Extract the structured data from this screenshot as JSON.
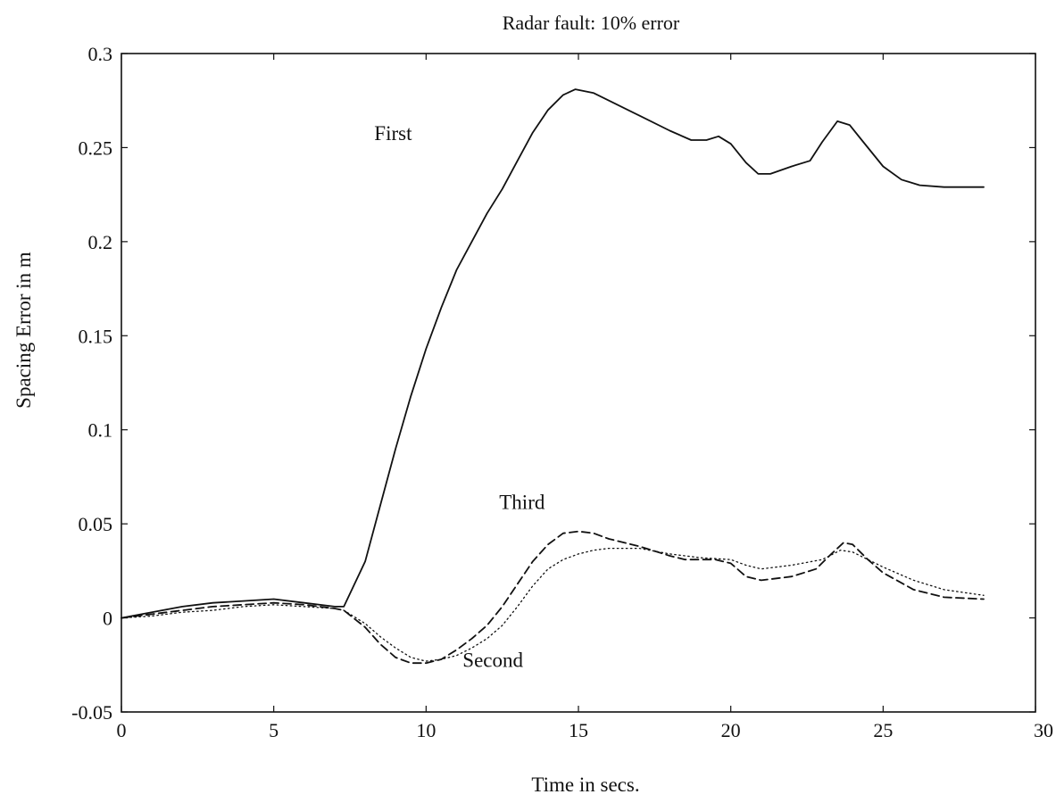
{
  "chart_data": {
    "type": "line",
    "title": "Radar fault: 10% error",
    "xlabel": "Time in secs.",
    "ylabel": "Spacing Error in m",
    "xlim": [
      0,
      30
    ],
    "ylim": [
      -0.05,
      0.3
    ],
    "grid": false,
    "x_ticks": [
      0,
      5,
      10,
      15,
      20,
      25,
      30
    ],
    "x_tick_labels": [
      "0",
      "5",
      "10",
      "15",
      "20",
      "25",
      "30"
    ],
    "y_ticks": [
      -0.05,
      0,
      0.05,
      0.1,
      0.15,
      0.2,
      0.25,
      0.3
    ],
    "y_tick_labels": [
      "-0.05",
      "0",
      "0.05",
      "0.1",
      "0.15",
      "0.2",
      "0.25",
      "0.3"
    ],
    "series": [
      {
        "name": "First",
        "style": "solid",
        "color": "#111111",
        "points": [
          [
            0,
            0
          ],
          [
            1,
            0.003
          ],
          [
            2,
            0.006
          ],
          [
            3,
            0.008
          ],
          [
            4,
            0.009
          ],
          [
            5,
            0.01
          ],
          [
            6,
            0.008
          ],
          [
            7,
            0.006
          ],
          [
            7.3,
            0.006
          ],
          [
            8,
            0.03
          ],
          [
            8.5,
            0.06
          ],
          [
            9,
            0.09
          ],
          [
            9.5,
            0.118
          ],
          [
            10,
            0.143
          ],
          [
            10.5,
            0.165
          ],
          [
            11,
            0.185
          ],
          [
            11.5,
            0.2
          ],
          [
            12,
            0.215
          ],
          [
            12.5,
            0.228
          ],
          [
            13,
            0.243
          ],
          [
            13.5,
            0.258
          ],
          [
            14,
            0.27
          ],
          [
            14.5,
            0.278
          ],
          [
            14.9,
            0.281
          ],
          [
            15.5,
            0.279
          ],
          [
            16,
            0.275
          ],
          [
            17,
            0.267
          ],
          [
            18,
            0.259
          ],
          [
            18.7,
            0.254
          ],
          [
            19.2,
            0.254
          ],
          [
            19.6,
            0.256
          ],
          [
            20,
            0.252
          ],
          [
            20.5,
            0.242
          ],
          [
            20.9,
            0.236
          ],
          [
            21.3,
            0.236
          ],
          [
            22,
            0.24
          ],
          [
            22.6,
            0.243
          ],
          [
            23,
            0.253
          ],
          [
            23.5,
            0.264
          ],
          [
            23.9,
            0.262
          ],
          [
            24.3,
            0.254
          ],
          [
            25,
            0.24
          ],
          [
            25.6,
            0.233
          ],
          [
            26.2,
            0.23
          ],
          [
            27,
            0.229
          ],
          [
            28.3,
            0.229
          ]
        ]
      },
      {
        "name": "Third",
        "style": "dashed",
        "color": "#111111",
        "points": [
          [
            0,
            0
          ],
          [
            1,
            0.002
          ],
          [
            2,
            0.004
          ],
          [
            3,
            0.006
          ],
          [
            4,
            0.007
          ],
          [
            5,
            0.008
          ],
          [
            6,
            0.007
          ],
          [
            7,
            0.005
          ],
          [
            7.3,
            0.004
          ],
          [
            8,
            -0.005
          ],
          [
            8.5,
            -0.014
          ],
          [
            9,
            -0.021
          ],
          [
            9.5,
            -0.024
          ],
          [
            10,
            -0.024
          ],
          [
            10.5,
            -0.022
          ],
          [
            11,
            -0.017
          ],
          [
            11.5,
            -0.011
          ],
          [
            12,
            -0.004
          ],
          [
            12.5,
            0.006
          ],
          [
            13,
            0.018
          ],
          [
            13.5,
            0.03
          ],
          [
            14,
            0.039
          ],
          [
            14.5,
            0.045
          ],
          [
            15,
            0.046
          ],
          [
            15.5,
            0.045
          ],
          [
            16,
            0.042
          ],
          [
            17,
            0.038
          ],
          [
            18,
            0.033
          ],
          [
            18.5,
            0.031
          ],
          [
            19,
            0.031
          ],
          [
            19.5,
            0.031
          ],
          [
            20,
            0.029
          ],
          [
            20.5,
            0.022
          ],
          [
            21,
            0.02
          ],
          [
            22,
            0.022
          ],
          [
            22.8,
            0.026
          ],
          [
            23.3,
            0.034
          ],
          [
            23.7,
            0.04
          ],
          [
            24,
            0.039
          ],
          [
            24.5,
            0.031
          ],
          [
            25,
            0.024
          ],
          [
            26,
            0.015
          ],
          [
            27,
            0.011
          ],
          [
            28.3,
            0.01
          ]
        ]
      },
      {
        "name": "Second",
        "style": "dotted",
        "color": "#111111",
        "points": [
          [
            0,
            0
          ],
          [
            1,
            0.001
          ],
          [
            2,
            0.003
          ],
          [
            3,
            0.004
          ],
          [
            4,
            0.006
          ],
          [
            5,
            0.007
          ],
          [
            6,
            0.006
          ],
          [
            7,
            0.005
          ],
          [
            7.3,
            0.004
          ],
          [
            8,
            -0.003
          ],
          [
            8.5,
            -0.01
          ],
          [
            9,
            -0.016
          ],
          [
            9.5,
            -0.021
          ],
          [
            10,
            -0.023
          ],
          [
            10.5,
            -0.022
          ],
          [
            11,
            -0.02
          ],
          [
            11.5,
            -0.016
          ],
          [
            12,
            -0.011
          ],
          [
            12.5,
            -0.004
          ],
          [
            13,
            0.006
          ],
          [
            13.5,
            0.017
          ],
          [
            14,
            0.026
          ],
          [
            14.5,
            0.031
          ],
          [
            15,
            0.034
          ],
          [
            15.5,
            0.036
          ],
          [
            16,
            0.037
          ],
          [
            17,
            0.037
          ],
          [
            18,
            0.034
          ],
          [
            19,
            0.032
          ],
          [
            20,
            0.031
          ],
          [
            20.5,
            0.028
          ],
          [
            21,
            0.026
          ],
          [
            22,
            0.028
          ],
          [
            23,
            0.031
          ],
          [
            23.6,
            0.036
          ],
          [
            24,
            0.035
          ],
          [
            24.5,
            0.031
          ],
          [
            25,
            0.027
          ],
          [
            26,
            0.02
          ],
          [
            27,
            0.015
          ],
          [
            28.3,
            0.012
          ]
        ]
      }
    ],
    "annotations": [
      {
        "text": "First",
        "x": 8.3,
        "y": 0.254
      },
      {
        "text": "Third",
        "x": 12.4,
        "y": 0.058
      },
      {
        "text": "Second",
        "x": 11.2,
        "y": -0.026
      }
    ]
  }
}
